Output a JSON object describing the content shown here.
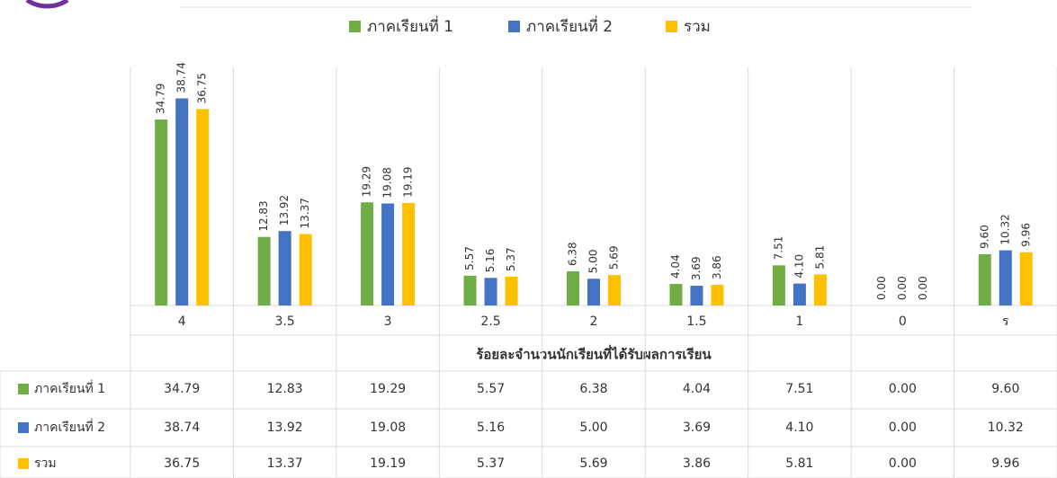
{
  "chart_data": {
    "type": "bar",
    "categories": [
      "4",
      "3.5",
      "3",
      "2.5",
      "2",
      "1.5",
      "1",
      "0",
      "ร"
    ],
    "x_label": "ร้อยละจำนวนนักเรียนที่ได้รับผลการเรียน",
    "ylim": [
      0,
      40
    ],
    "series": [
      {
        "name": "ภาคเรียนที่ 1",
        "color": "#70ad47",
        "values": [
          34.79,
          12.83,
          19.29,
          5.57,
          6.38,
          4.04,
          7.51,
          0,
          9.6
        ],
        "value_labels": [
          "34.79",
          "12.83",
          "19.29",
          "5.57",
          "6.38",
          "4.04",
          "7.51",
          "0.00",
          "9.60"
        ]
      },
      {
        "name": "ภาคเรียนที่ 2",
        "color": "#4472c4",
        "values": [
          38.74,
          13.92,
          19.08,
          5.16,
          5,
          3.69,
          4.1,
          0,
          10.32
        ],
        "value_labels": [
          "38.74",
          "13.92",
          "19.08",
          "5.16",
          "5.00",
          "3.69",
          "4.10",
          "0.00",
          "10.32"
        ]
      },
      {
        "name": "รวม",
        "color": "#ffc000",
        "values": [
          36.75,
          13.37,
          19.19,
          5.37,
          5.69,
          3.86,
          5.81,
          0,
          9.96
        ],
        "value_labels": [
          "36.75",
          "13.37",
          "19.19",
          "5.37",
          "5.69",
          "3.86",
          "5.81",
          "0.00",
          "9.96"
        ]
      }
    ],
    "legend": "top"
  }
}
